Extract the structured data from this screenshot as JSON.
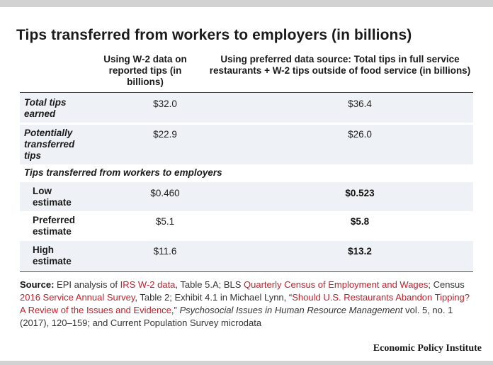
{
  "title": "Tips transferred from workers to employers (in billions)",
  "columns": {
    "col1": "Using W-2 data on reported tips (in billions)",
    "col2": "Using preferred data source: Total tips in full service restaurants + W-2 tips outside of food service (in billions)"
  },
  "rows": [
    {
      "label": "Total tips earned",
      "w2": "$32.0",
      "preferred": "$36.4"
    },
    {
      "label": "Potentially transferred tips",
      "w2": "$22.9",
      "preferred": "$26.0"
    }
  ],
  "section_label": "Tips transferred from workers to employers",
  "estimates": [
    {
      "label": "Low estimate",
      "w2": "$0.460",
      "preferred": "$0.523"
    },
    {
      "label": "Preferred estimate",
      "w2": "$5.1",
      "preferred": "$5.8"
    },
    {
      "label": "High estimate",
      "w2": "$11.6",
      "preferred": "$13.2"
    }
  ],
  "source": {
    "label": "Source:",
    "t1": " EPI analysis  of ",
    "l1": "IRS W-2 data",
    "t2": ", Table 5.A; BLS ",
    "l2": "Quarterly Census of Employment and Wages",
    "t3": "; Census ",
    "l3": "2016 Service Annual Survey",
    "t4": ", Table 2; Exhibit 4.1 in Michael Lynn, “",
    "l4": "Should U.S. Restaurants Abandon Tipping? A Review of the Issues and Evidence",
    "t5": ",” ",
    "i1": "Psychosocial Issues in Human Resource Management",
    "t6": " vol. 5, no. 1 (2017), 120–159; and Current Population Survey microdata"
  },
  "brand": "Economic Policy Institute",
  "colors": {
    "link": "#c0202a",
    "shade": "#eef1f5",
    "bar": "#d2d2d2"
  }
}
